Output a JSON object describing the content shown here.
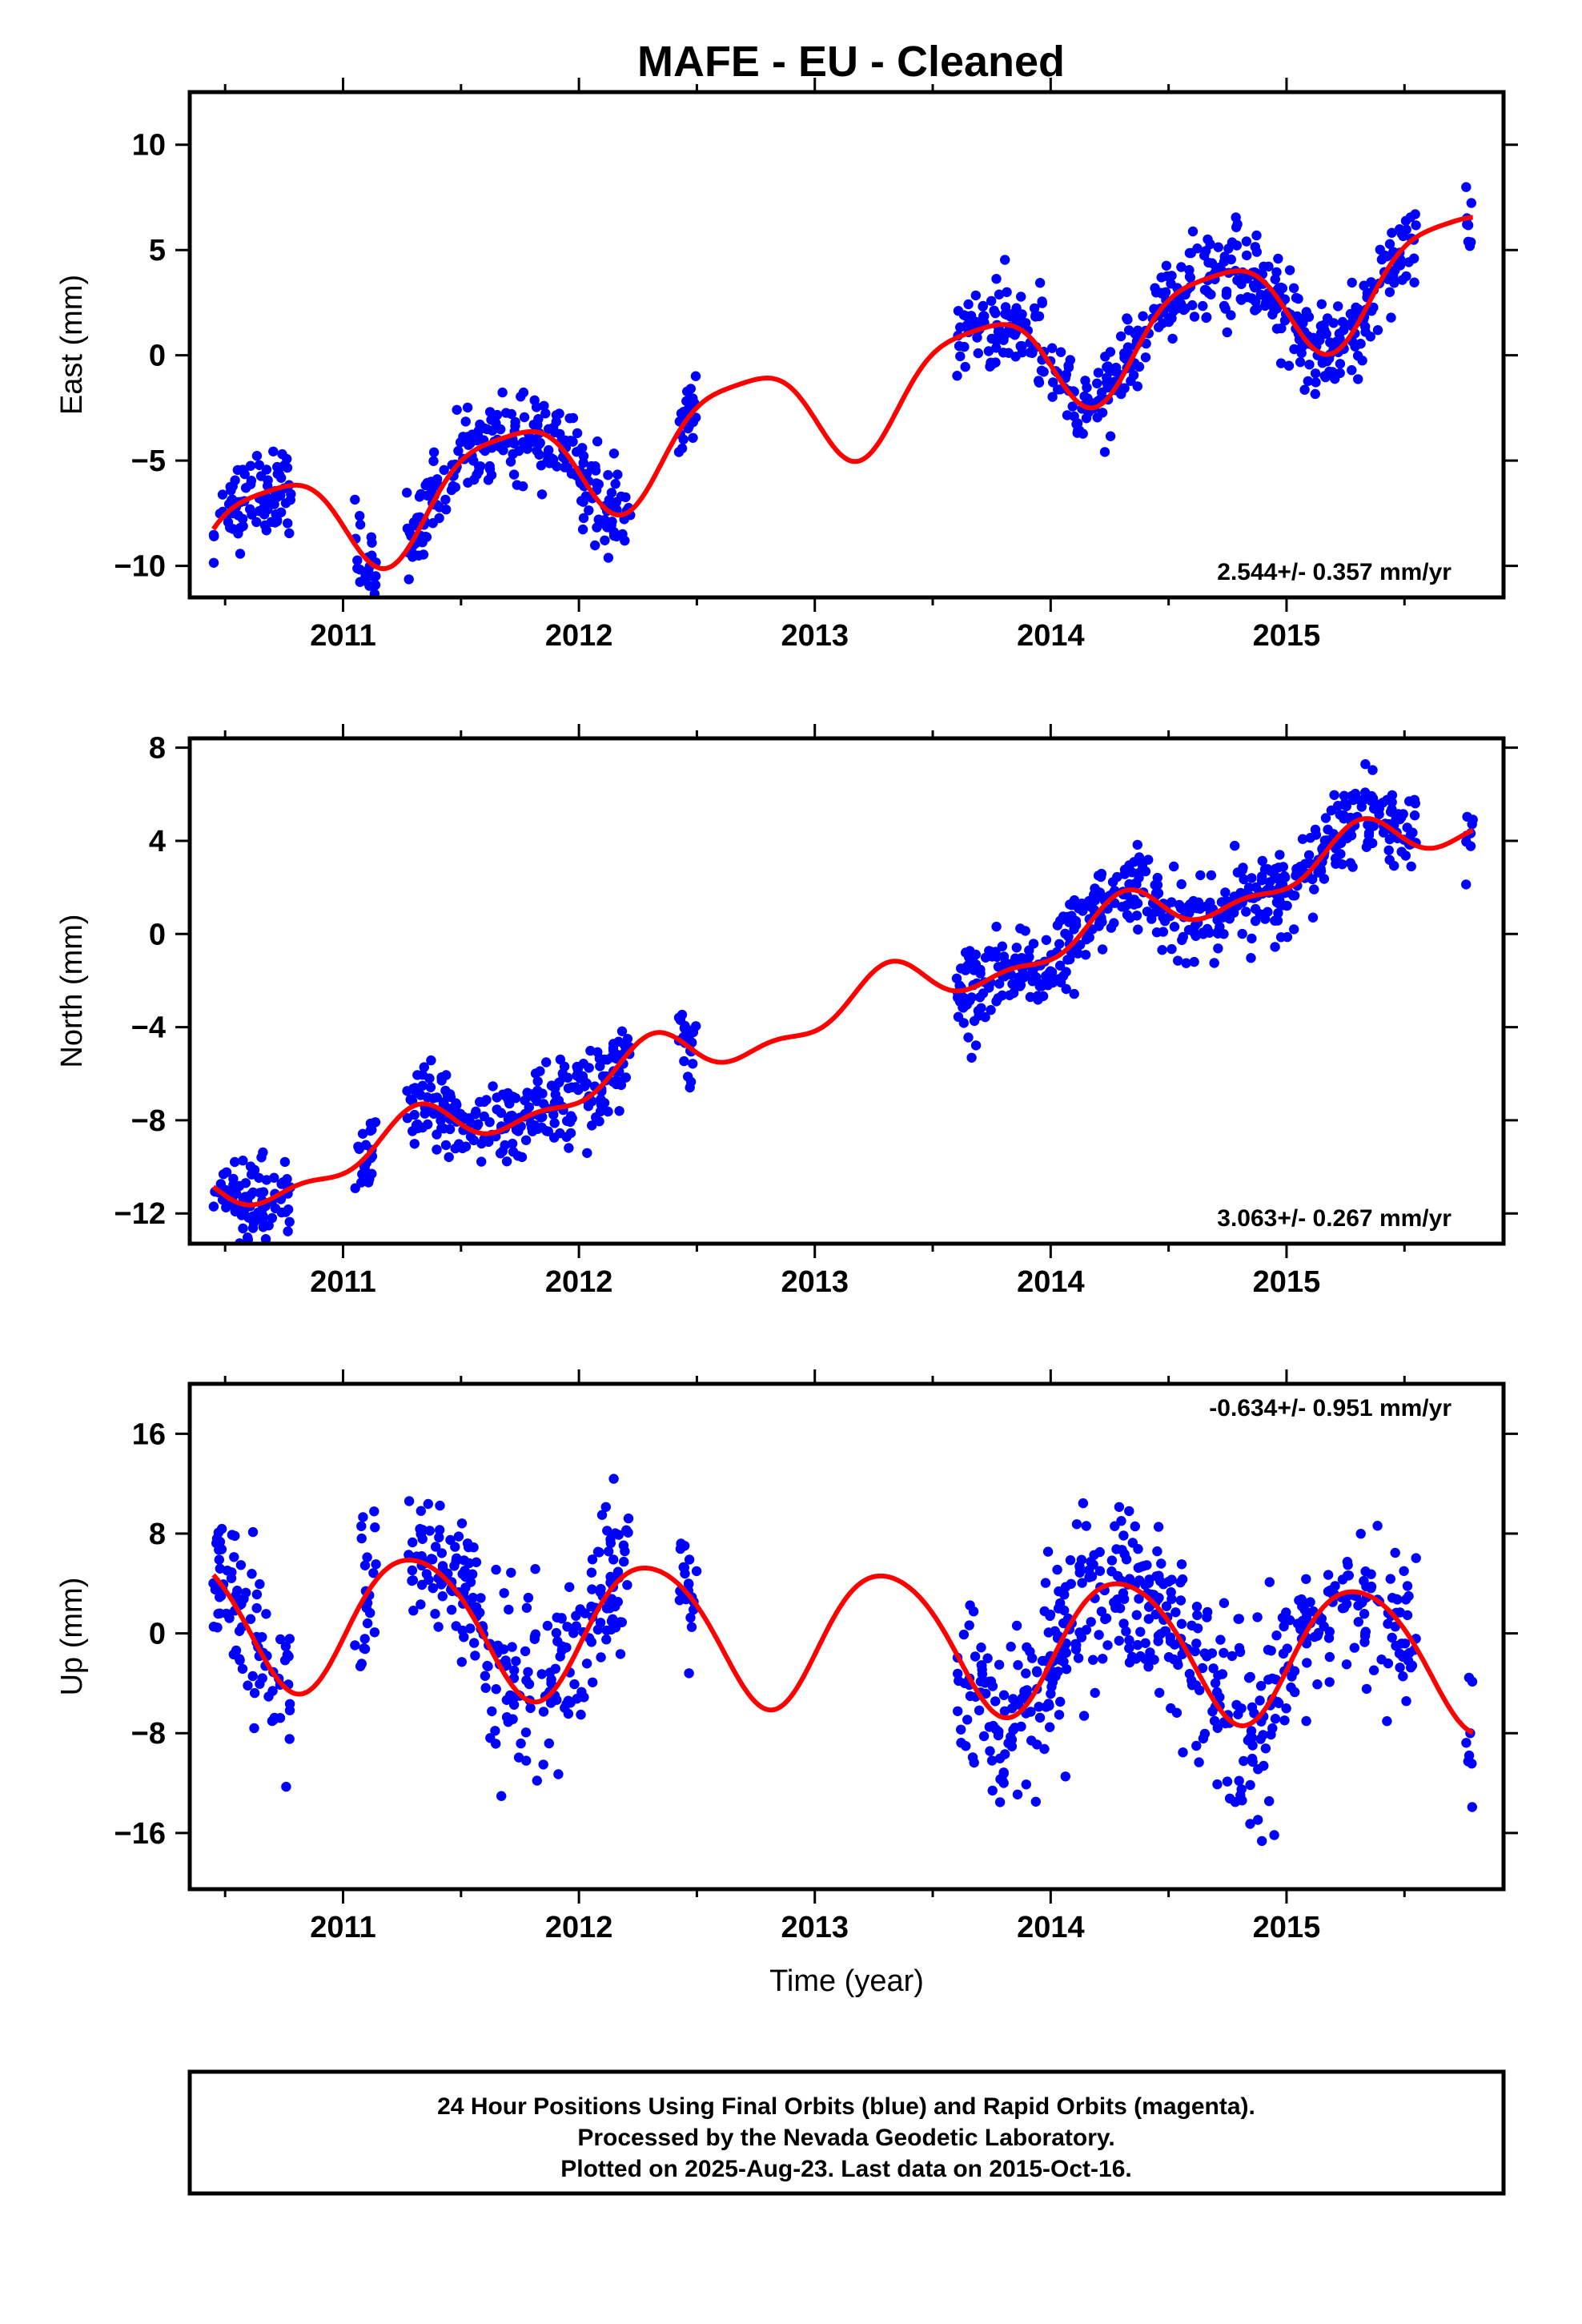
{
  "title": "MAFE  - EU - Cleaned",
  "colors": {
    "points": "#0000ff",
    "fit": "#ff0000",
    "frame": "#000000",
    "background": "#ffffff"
  },
  "footer": {
    "lines": [
      "24 Hour Positions Using Final Orbits (blue) and Rapid Orbits (magenta).",
      "Processed by the Nevada Geodetic Laboratory.",
      "Plotted on 2025-Aug-23. Last data on 2015-Oct-16."
    ]
  },
  "chart_data": [
    {
      "type": "scatter",
      "id": "east",
      "ylabel": "East (mm)",
      "xlabel": "",
      "xlim": [
        2010.35,
        2015.92
      ],
      "ylim": [
        -11.5,
        12.5
      ],
      "xticks": [
        2011,
        2012,
        2013,
        2014,
        2015
      ],
      "yticks": [
        -10,
        -5,
        0,
        5,
        10
      ],
      "yticklabels": [
        "−10",
        "−5",
        "0",
        "5",
        "10"
      ],
      "rate_label": "2.544+/- 0.357 mm/yr",
      "rate_label_position": "bottom-right",
      "segments": [
        [
          2010.45,
          2010.78
        ],
        [
          2011.05,
          2011.14
        ],
        [
          2011.27,
          2012.22
        ],
        [
          2012.42,
          2012.5
        ],
        [
          2013.6,
          2015.55
        ],
        [
          2015.76,
          2015.79
        ]
      ],
      "fit": {
        "offset": -7.55,
        "rate": 2.544,
        "ref": 2011.0,
        "sin": -2.3,
        "cos": -0.9,
        "sin2": -0.45,
        "cos2": 0.35
      },
      "scatter_sd": 1.0,
      "series": [
        {
          "name": "",
          "kind": "points",
          "values": "daily positions (blue)"
        },
        {
          "name": "",
          "kind": "fit",
          "values": "trend + seasonal model (red)"
        }
      ]
    },
    {
      "type": "scatter",
      "id": "north",
      "ylabel": "North (mm)",
      "xlabel": "",
      "xlim": [
        2010.35,
        2015.92
      ],
      "ylim": [
        -13.3,
        8.4
      ],
      "xticks": [
        2011,
        2012,
        2013,
        2014,
        2015
      ],
      "yticks": [
        -12,
        -8,
        -4,
        0,
        4,
        8
      ],
      "yticklabels": [
        "−12",
        "−8",
        "−4",
        "0",
        "4",
        "8"
      ],
      "rate_label": "3.063+/- 0.267 mm/yr",
      "rate_label_position": "bottom-right",
      "segments": [
        [
          2010.45,
          2010.78
        ],
        [
          2011.05,
          2011.14
        ],
        [
          2011.27,
          2012.22
        ],
        [
          2012.42,
          2012.5
        ],
        [
          2013.6,
          2015.55
        ],
        [
          2015.76,
          2015.79
        ]
      ],
      "fit": {
        "offset": -9.7,
        "rate": 3.063,
        "ref": 2011.0,
        "sin": 0.9,
        "cos": -0.3,
        "sin2": -0.35,
        "cos2": -0.3
      },
      "scatter_sd": 0.9,
      "series": [
        {
          "name": "",
          "kind": "points",
          "values": "daily positions (blue)"
        },
        {
          "name": "",
          "kind": "fit",
          "values": "trend + seasonal model (red)"
        }
      ]
    },
    {
      "type": "scatter",
      "id": "up",
      "ylabel": "Up (mm)",
      "xlabel": "Time (year)",
      "xlim": [
        2010.35,
        2015.92
      ],
      "ylim": [
        -20.5,
        20.0
      ],
      "xticks": [
        2011,
        2012,
        2013,
        2014,
        2015
      ],
      "yticks": [
        -16,
        -8,
        0,
        8,
        16
      ],
      "yticklabels": [
        "−16",
        "−8",
        "0",
        "8",
        "16"
      ],
      "rate_label": "-0.634+/- 0.951 mm/yr",
      "rate_label_position": "top-right",
      "segments": [
        [
          2010.45,
          2010.78
        ],
        [
          2011.05,
          2011.14
        ],
        [
          2011.27,
          2012.22
        ],
        [
          2012.42,
          2012.5
        ],
        [
          2013.6,
          2015.55
        ],
        [
          2015.76,
          2015.79
        ]
      ],
      "fit": {
        "offset": -0.2,
        "rate": -0.634,
        "ref": 2013.0,
        "sin": 5.2,
        "cos": -1.8,
        "sin2": 0.5,
        "cos2": 0.3
      },
      "scatter_sd": 3.4,
      "series": [
        {
          "name": "",
          "kind": "points",
          "values": "daily positions (blue)"
        },
        {
          "name": "",
          "kind": "fit",
          "values": "trend + seasonal model (red)"
        }
      ]
    }
  ]
}
